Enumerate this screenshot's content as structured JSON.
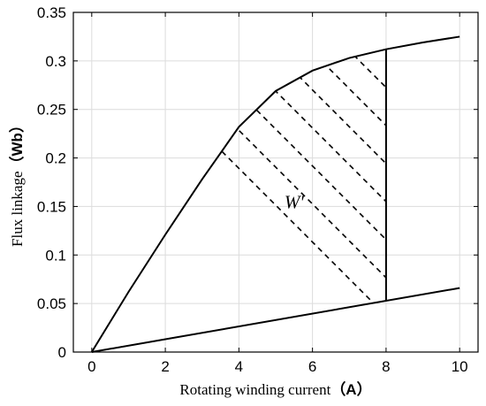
{
  "chart_data": {
    "type": "line",
    "xlabel": "Rotating winding current",
    "xlabel_unit": "（A）",
    "ylabel": "Flux linkage",
    "ylabel_unit": "（Wb）",
    "xlim": [
      -0.5,
      10.5
    ],
    "ylim": [
      0,
      0.35
    ],
    "xticks": [
      0,
      2,
      4,
      6,
      8,
      10
    ],
    "xtick_labels": [
      "0",
      "2",
      "4",
      "6",
      "8",
      "10"
    ],
    "yticks": [
      0,
      0.05,
      0.1,
      0.15,
      0.2,
      0.25,
      0.3,
      0.35
    ],
    "ytick_labels": [
      "0",
      "0.05",
      "0.1",
      "0.15",
      "0.2",
      "0.25",
      "0.3",
      "0.35"
    ],
    "grid": true,
    "series": [
      {
        "x": [
          0,
          1,
          2,
          3,
          4,
          5,
          6,
          7,
          8,
          9,
          10
        ],
        "values": [
          0,
          0.062,
          0.121,
          0.178,
          0.232,
          0.269,
          0.29,
          0.303,
          0.312,
          0.319,
          0.325
        ]
      },
      {
        "x": [
          0,
          10
        ],
        "values": [
          0,
          0.066
        ]
      },
      {
        "x": [
          8,
          8
        ],
        "values": [
          0.053,
          0.312
        ]
      }
    ],
    "shaded_region": {
      "between_series": [
        0,
        1
      ],
      "x_range": [
        0,
        8
      ],
      "pattern": "dashed diagonal hatching",
      "label": "W'",
      "label_position": [
        5.5,
        0.148
      ]
    }
  }
}
